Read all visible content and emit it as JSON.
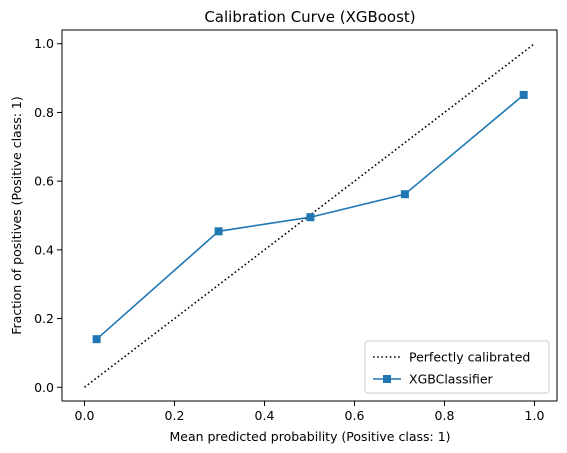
{
  "chart_data": {
    "type": "line",
    "title": "Calibration Curve (XGBoost)",
    "xlabel": "Mean predicted probability (Positive class: 1)",
    "ylabel": "Fraction of positives (Positive class: 1)",
    "xlim": [
      -0.05,
      1.05
    ],
    "ylim": [
      -0.04,
      1.04
    ],
    "xticks": [
      0.0,
      0.2,
      0.4,
      0.6,
      0.8,
      1.0
    ],
    "xtick_labels": [
      "0.0",
      "0.2",
      "0.4",
      "0.6",
      "0.8",
      "1.0"
    ],
    "yticks": [
      0.0,
      0.2,
      0.4,
      0.6,
      0.8,
      1.0
    ],
    "ytick_labels": [
      "0.0",
      "0.2",
      "0.4",
      "0.6",
      "0.8",
      "1.0"
    ],
    "grid": false,
    "legend_position": "lower-right",
    "series": [
      {
        "name": "Perfectly calibrated",
        "style": "dotted",
        "color": "#000000",
        "x": [
          0.0,
          1.0
        ],
        "y": [
          0.0,
          1.0
        ]
      },
      {
        "name": "XGBClassifier",
        "style": "solid",
        "marker": "square",
        "color": "#1f77b4",
        "x": [
          0.027,
          0.298,
          0.502,
          0.712,
          0.976
        ],
        "y": [
          0.14,
          0.454,
          0.495,
          0.562,
          0.851
        ]
      }
    ]
  }
}
